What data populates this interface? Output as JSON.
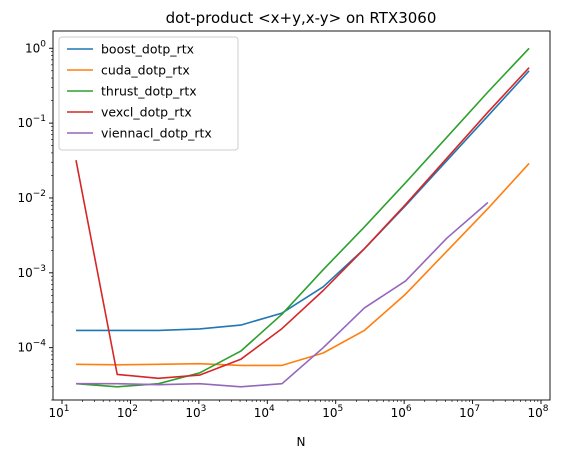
{
  "chart_data": {
    "type": "line",
    "title": "dot-product <x+y,x-y> on RTX3060",
    "xlabel": "N",
    "ylabel": "",
    "xscale": "log",
    "yscale": "log",
    "xlim": [
      10,
      100000000
    ],
    "ylim": [
      2e-05,
      1.7
    ],
    "grid": false,
    "legend_position": "top-left",
    "x_ticks": [
      {
        "value": 10,
        "base": "10",
        "exp": "1"
      },
      {
        "value": 100,
        "base": "10",
        "exp": "2"
      },
      {
        "value": 1000,
        "base": "10",
        "exp": "3"
      },
      {
        "value": 10000,
        "base": "10",
        "exp": "4"
      },
      {
        "value": 100000,
        "base": "10",
        "exp": "5"
      },
      {
        "value": 1000000,
        "base": "10",
        "exp": "6"
      },
      {
        "value": 10000000,
        "base": "10",
        "exp": "7"
      },
      {
        "value": 100000000,
        "base": "10",
        "exp": "8"
      }
    ],
    "y_ticks": [
      {
        "value": 0.0001,
        "base": "10",
        "exp": "−4"
      },
      {
        "value": 0.001,
        "base": "10",
        "exp": "−3"
      },
      {
        "value": 0.01,
        "base": "10",
        "exp": "−2"
      },
      {
        "value": 0.1,
        "base": "10",
        "exp": "−1"
      },
      {
        "value": 1,
        "base": "10",
        "exp": "0"
      }
    ],
    "series": [
      {
        "name": "boost_dotp_rtx",
        "color": "#1f77b4",
        "x": [
          16,
          64,
          256,
          1024,
          4096,
          16384,
          65536,
          262144,
          1048576,
          16777216,
          67108864
        ],
        "y": [
          0.00017,
          0.00017,
          0.00017,
          0.000178,
          0.0002,
          0.00029,
          0.00065,
          0.0021,
          0.0079,
          0.125,
          0.5
        ]
      },
      {
        "name": "cuda_dotp_rtx",
        "color": "#ff7f0e",
        "x": [
          16,
          64,
          256,
          1024,
          4096,
          16384,
          65536,
          262144,
          1048576,
          16777216,
          67108864
        ],
        "y": [
          6e-05,
          5.9e-05,
          6e-05,
          6.1e-05,
          5.8e-05,
          5.8e-05,
          8.5e-05,
          0.00017,
          0.00052,
          0.0072,
          0.029
        ]
      },
      {
        "name": "thrust_dotp_rtx",
        "color": "#2ca02c",
        "x": [
          16,
          64,
          256,
          1024,
          4096,
          16384,
          65536,
          262144,
          1048576,
          16777216,
          67108864
        ],
        "y": [
          3.3e-05,
          3e-05,
          3.3e-05,
          4.6e-05,
          9e-05,
          0.00028,
          0.0011,
          0.0041,
          0.016,
          0.26,
          1.0
        ]
      },
      {
        "name": "vexcl_dotp_rtx",
        "color": "#d62728",
        "x": [
          16,
          64,
          256,
          1024,
          4096,
          16384,
          65536,
          262144,
          1048576,
          16777216,
          67108864
        ],
        "y": [
          0.032,
          4.4e-05,
          3.9e-05,
          4.3e-05,
          7e-05,
          0.00018,
          0.00058,
          0.0021,
          0.0082,
          0.14,
          0.55
        ]
      },
      {
        "name": "viennacl_dotp_rtx",
        "color": "#9467bd",
        "x": [
          16,
          64,
          256,
          1024,
          4096,
          16384,
          65536,
          262144,
          1048576,
          4194304,
          16777216
        ],
        "y": [
          3.3e-05,
          3.3e-05,
          3.2e-05,
          3.3e-05,
          3e-05,
          3.3e-05,
          0.0001,
          0.00034,
          0.00078,
          0.0029,
          0.0087
        ]
      }
    ]
  }
}
